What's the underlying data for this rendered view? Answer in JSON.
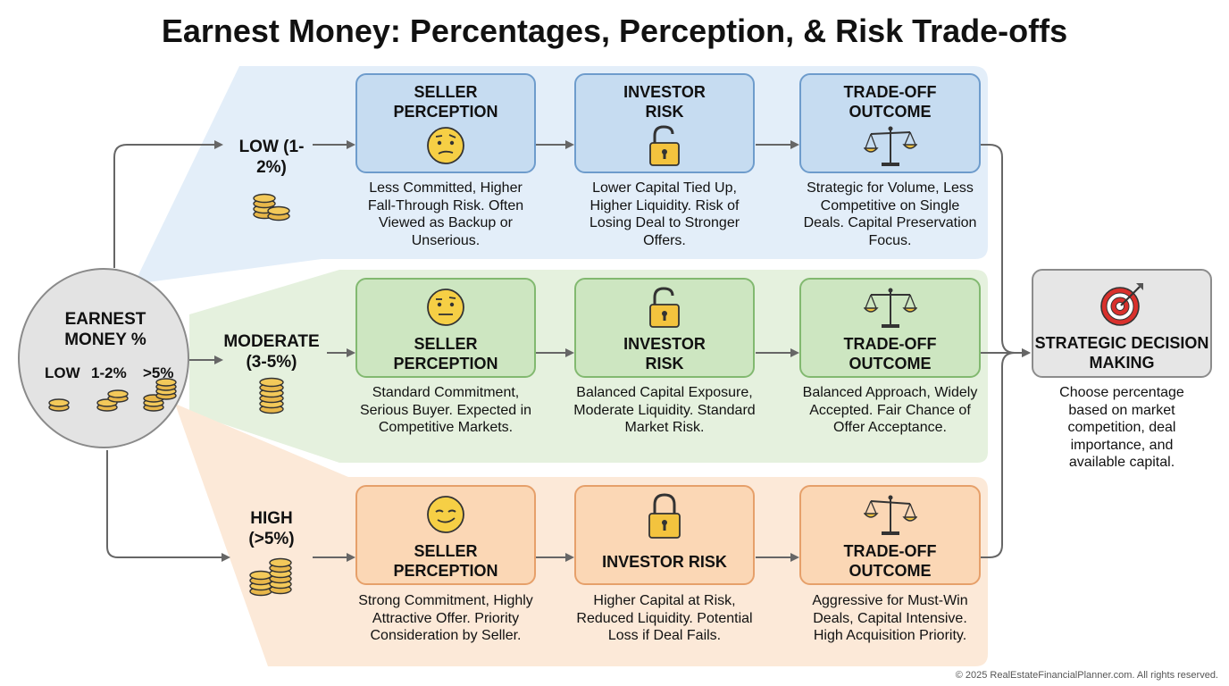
{
  "title": "Earnest Money: Percentages, Perception, & Risk Trade-offs",
  "center": {
    "heading": "EARNEST MONEY %",
    "levels": [
      "LOW",
      "1-2%",
      ">5%"
    ]
  },
  "rows": [
    {
      "level": "LOW (1-2%)",
      "perception_title": "SELLER PERCEPTION",
      "perception_desc": "Less Committed, Higher Fall-Through Risk. Often Viewed as Backup or Unserious.",
      "risk_title": "INVESTOR RISK",
      "risk_desc": "Lower Capital Tied Up, Higher Liquidity. Risk of Losing Deal to Stronger Offers.",
      "outcome_title": "TRADE-OFF OUTCOME",
      "outcome_desc": "Strategic for Volume, Less Competitive on Single Deals. Capital Preservation Focus."
    },
    {
      "level": "MODERATE (3-5%)",
      "perception_title": "SELLER PERCEPTION",
      "perception_desc": "Standard Commitment, Serious Buyer. Expected in Competitive Markets.",
      "risk_title": "INVESTOR RISK",
      "risk_desc": "Balanced Capital Exposure, Moderate Liquidity. Standard Market Risk.",
      "outcome_title": "TRADE-OFF OUTCOME",
      "outcome_desc": "Balanced Approach, Widely Accepted. Fair Chance of Offer Acceptance."
    },
    {
      "level": "HIGH (>5%)",
      "perception_title": "SELLER PERCEPTION",
      "perception_desc": "Strong Commitment, Highly Attractive Offer. Priority Consideration by Seller.",
      "risk_title": "INVESTOR RISK",
      "risk_desc": "Higher Capital at Risk, Reduced Liquidity. Potential Loss if Deal Fails.",
      "outcome_title": "TRADE-OFF OUTCOME",
      "outcome_desc": "Aggressive for Must-Win Deals, Capital Intensive. High Acquisition Priority."
    }
  ],
  "decision": {
    "title": "STRATEGIC DECISION MAKING",
    "desc": "Choose percentage based on market competition, deal importance, and available capital."
  },
  "footer": "© 2025 RealEstateFinancialPlanner.com. All rights reserved.",
  "colors": {
    "low_band": "#e3eef9",
    "moderate_band": "#e5f1de",
    "high_band": "#fce9d8",
    "arrow": "#666666"
  },
  "icons": {
    "low_face": "confused-face-icon",
    "moderate_face": "neutral-face-icon",
    "high_face": "smirk-face-icon",
    "lock": "padlock-icon",
    "scale": "balance-scale-icon",
    "target": "target-icon",
    "coins": "coin-stack-icon"
  }
}
